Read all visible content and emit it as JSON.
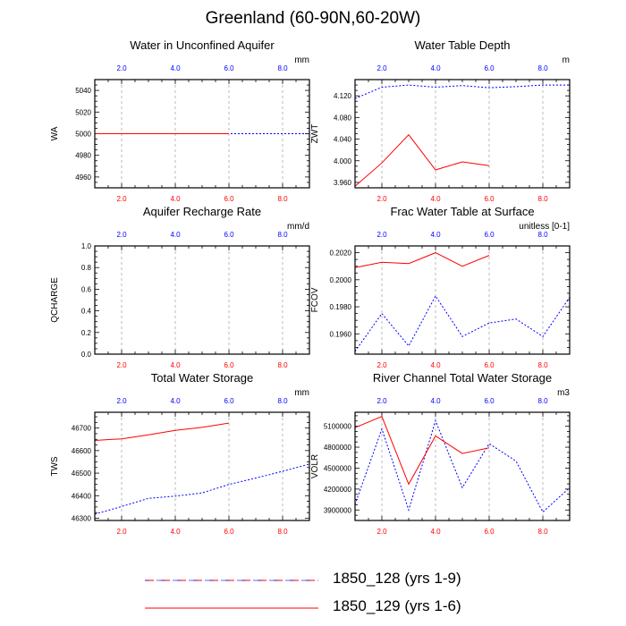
{
  "title": "Greenland (60-90N,60-20W)",
  "colors": {
    "run_128": "#0000ff",
    "run_129": "#ff0000"
  },
  "legend": [
    {
      "label": "1850_128 (yrs 1-9)",
      "style": "dashed-blue-red"
    },
    {
      "label": "1850_129 (yrs 1-6)",
      "style": "solid-red"
    }
  ],
  "chart_data": [
    {
      "type": "line",
      "title": "Water in Unconfined Aquifer",
      "ylabel": "WA",
      "units": "mm",
      "xlim": [
        1,
        9
      ],
      "ylim": [
        4950,
        5050
      ],
      "yticks": [
        4960,
        4980,
        5000,
        5020,
        5040
      ],
      "ytick_labels": [
        "4960",
        "4980",
        "5000",
        "5020",
        "5040"
      ],
      "xticks": [
        2,
        4,
        6,
        8
      ],
      "top_xtick_labels": [
        "2.0",
        "4.0",
        "6.0",
        "8.0"
      ],
      "bottom_xtick_labels": [
        "2.0",
        "4.0",
        "6.0",
        "8.0"
      ],
      "grid": "vertical-dashed",
      "series": [
        {
          "key": "run_128",
          "x": [
            1,
            2,
            3,
            4,
            5,
            6,
            7,
            8,
            9
          ],
          "values": [
            5000,
            5000,
            5000,
            5000,
            5000,
            5000,
            5000,
            5000,
            5000
          ]
        },
        {
          "key": "run_129",
          "x": [
            1,
            2,
            3,
            4,
            5,
            6
          ],
          "values": [
            5000,
            5000,
            5000,
            5000,
            5000,
            5000
          ]
        }
      ]
    },
    {
      "type": "line",
      "title": "Water Table Depth",
      "ylabel": "ZWT",
      "units": "m",
      "xlim": [
        1,
        9
      ],
      "ylim": [
        3.95,
        4.15
      ],
      "yticks": [
        3.96,
        4.0,
        4.04,
        4.08,
        4.12
      ],
      "ytick_labels": [
        "3.960",
        "4.000",
        "4.040",
        "4.080",
        "4.120"
      ],
      "xticks": [
        2,
        4,
        6,
        8
      ],
      "top_xtick_labels": [
        "2.0",
        "4.0",
        "6.0",
        "8.0"
      ],
      "bottom_xtick_labels": [
        "2.0",
        "4.0",
        "6.0",
        "8.0"
      ],
      "grid": "vertical-dashed",
      "series": [
        {
          "key": "run_128",
          "x": [
            1,
            2,
            3,
            4,
            5,
            6,
            7,
            8,
            9
          ],
          "values": [
            4.115,
            4.136,
            4.14,
            4.136,
            4.139,
            4.135,
            4.137,
            4.14,
            4.14
          ]
        },
        {
          "key": "run_129",
          "x": [
            1,
            2,
            3,
            4,
            5,
            6
          ],
          "values": [
            3.953,
            3.996,
            4.048,
            3.983,
            3.998,
            3.991
          ]
        }
      ]
    },
    {
      "type": "line",
      "title": "Aquifer Recharge Rate",
      "ylabel": "QCHARGE",
      "units": "mm/d",
      "xlim": [
        1,
        9
      ],
      "ylim": [
        0,
        1
      ],
      "yticks": [
        0,
        0.2,
        0.4,
        0.6,
        0.8,
        1.0
      ],
      "ytick_labels": [
        "0.0",
        "0.2",
        "0.4",
        "0.6",
        "0.8",
        "1.0"
      ],
      "xticks": [
        2,
        4,
        6,
        8
      ],
      "top_xtick_labels": [
        "2.0",
        "4.0",
        "6.0",
        "8.0"
      ],
      "bottom_xtick_labels": [
        "2.0",
        "4.0",
        "6.0",
        "8.0"
      ],
      "grid": "vertical-dashed",
      "series": []
    },
    {
      "type": "line",
      "title": "Frac Water Table at Surface",
      "ylabel": "FCOV",
      "units": "unitless [0-1]",
      "xlim": [
        1,
        9
      ],
      "ylim": [
        0.1945,
        0.2025
      ],
      "yticks": [
        0.196,
        0.198,
        0.2,
        0.202
      ],
      "ytick_labels": [
        "0.1960",
        "0.1980",
        "0.2000",
        "0.2020"
      ],
      "xticks": [
        2,
        4,
        6,
        8
      ],
      "top_xtick_labels": [
        "2.0",
        "4.0",
        "6.0",
        "8.0"
      ],
      "bottom_xtick_labels": [
        "2.0",
        "4.0",
        "6.0",
        "8.0"
      ],
      "grid": "vertical-dashed",
      "series": [
        {
          "key": "run_128",
          "x": [
            1,
            2,
            3,
            4,
            5,
            6,
            7,
            8,
            9
          ],
          "values": [
            0.1947,
            0.1975,
            0.1951,
            0.1988,
            0.1958,
            0.1968,
            0.1971,
            0.1958,
            0.1987
          ]
        },
        {
          "key": "run_129",
          "x": [
            1,
            2,
            3,
            4,
            5,
            6
          ],
          "values": [
            0.2009,
            0.2013,
            0.2012,
            0.202,
            0.201,
            0.2018
          ]
        }
      ]
    },
    {
      "type": "line",
      "title": "Total Water Storage",
      "ylabel": "TWS",
      "units": "mm",
      "xlim": [
        1,
        9
      ],
      "ylim": [
        46290,
        46770
      ],
      "yticks": [
        46300,
        46400,
        46500,
        46600,
        46700
      ],
      "ytick_labels": [
        "46300",
        "46400",
        "46500",
        "46600",
        "46700"
      ],
      "xticks": [
        2,
        4,
        6,
        8
      ],
      "top_xtick_labels": [
        "2.0",
        "4.0",
        "6.0",
        "8.0"
      ],
      "bottom_xtick_labels": [
        "2.0",
        "4.0",
        "6.0",
        "8.0"
      ],
      "grid": "vertical-dashed",
      "series": [
        {
          "key": "run_128",
          "x": [
            1,
            2,
            3,
            4,
            5,
            6,
            7,
            8,
            9
          ],
          "values": [
            46318,
            46352,
            46388,
            46398,
            46412,
            46450,
            46478,
            46508,
            46540
          ]
        },
        {
          "key": "run_129",
          "x": [
            1,
            2,
            3,
            4,
            5,
            6
          ],
          "values": [
            46645,
            46652,
            46670,
            46690,
            46703,
            46722
          ]
        }
      ]
    },
    {
      "type": "line",
      "title": "River Channel Total Water Storage",
      "ylabel": "VOLR",
      "units": "m3",
      "xlim": [
        1,
        9
      ],
      "ylim": [
        3750000,
        5300000
      ],
      "yticks": [
        3900000,
        4200000,
        4500000,
        4800000,
        5100000
      ],
      "ytick_labels": [
        "3900000",
        "4200000",
        "4500000",
        "4800000",
        "5100000"
      ],
      "xticks": [
        2,
        4,
        6,
        8
      ],
      "top_xtick_labels": [
        "2.0",
        "4.0",
        "6.0",
        "8.0"
      ],
      "bottom_xtick_labels": [
        "2.0",
        "4.0",
        "6.0",
        "8.0"
      ],
      "grid": "vertical-dashed",
      "series": [
        {
          "key": "run_128",
          "x": [
            1,
            2,
            3,
            4,
            5,
            6,
            7,
            8,
            9
          ],
          "values": [
            3980000,
            5060000,
            3900000,
            5180000,
            4220000,
            4850000,
            4600000,
            3870000,
            4220000
          ]
        },
        {
          "key": "run_129",
          "x": [
            1,
            2,
            3,
            4,
            5,
            6
          ],
          "values": [
            5080000,
            5240000,
            4270000,
            4960000,
            4710000,
            4790000
          ]
        }
      ]
    }
  ]
}
